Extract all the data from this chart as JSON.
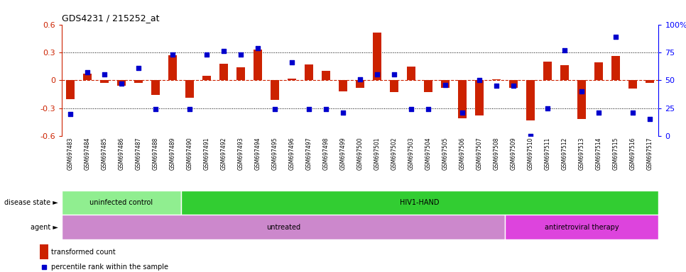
{
  "title": "GDS4231 / 215252_at",
  "samples": [
    "GSM697483",
    "GSM697484",
    "GSM697485",
    "GSM697486",
    "GSM697487",
    "GSM697488",
    "GSM697489",
    "GSM697490",
    "GSM697491",
    "GSM697492",
    "GSM697493",
    "GSM697494",
    "GSM697495",
    "GSM697496",
    "GSM697497",
    "GSM697498",
    "GSM697499",
    "GSM697500",
    "GSM697501",
    "GSM697502",
    "GSM697503",
    "GSM697504",
    "GSM697505",
    "GSM697506",
    "GSM697507",
    "GSM697508",
    "GSM697509",
    "GSM697510",
    "GSM697511",
    "GSM697512",
    "GSM697513",
    "GSM697514",
    "GSM697515",
    "GSM697516",
    "GSM697517"
  ],
  "bar_values": [
    -0.2,
    0.07,
    -0.03,
    -0.06,
    -0.03,
    -0.16,
    0.27,
    -0.19,
    0.05,
    0.18,
    0.14,
    0.33,
    -0.21,
    0.02,
    0.17,
    0.1,
    -0.12,
    -0.08,
    0.51,
    -0.13,
    0.15,
    -0.13,
    -0.08,
    -0.41,
    -0.38,
    0.01,
    -0.08,
    -0.43,
    0.2,
    0.16,
    -0.42,
    0.19,
    0.26,
    -0.09,
    -0.03
  ],
  "dot_percentiles": [
    20,
    57,
    55,
    47,
    61,
    24,
    73,
    24,
    73,
    76,
    73,
    79,
    24,
    66,
    24,
    24,
    21,
    51,
    55,
    55,
    24,
    24,
    46,
    21,
    50,
    45,
    45,
    0,
    25,
    77,
    40,
    21,
    89,
    21,
    15
  ],
  "bar_color": "#CC2200",
  "dot_color": "#0000CC",
  "zero_line_color": "#CC2200",
  "grid_color": "#000000",
  "ylim_left": [
    -0.6,
    0.6
  ],
  "ylim_right": [
    0,
    100
  ],
  "yticks_left": [
    -0.6,
    -0.3,
    0.0,
    0.3,
    0.6
  ],
  "yticks_right": [
    0,
    25,
    50,
    75,
    100
  ],
  "ytick_labels_left": [
    "-0.6",
    "-0.3",
    "0",
    "0.3",
    "0.6"
  ],
  "ytick_labels_right": [
    "0",
    "25",
    "50",
    "75",
    "100%"
  ],
  "hlines": [
    0.3,
    -0.3
  ],
  "disease_state_groups": [
    {
      "label": "uninfected control",
      "start": 0,
      "end": 7,
      "color": "#90EE90"
    },
    {
      "label": "HIV1-HAND",
      "start": 7,
      "end": 35,
      "color": "#32CD32"
    }
  ],
  "agent_groups": [
    {
      "label": "untreated",
      "start": 0,
      "end": 26,
      "color": "#CC88CC"
    },
    {
      "label": "antiretroviral therapy",
      "start": 26,
      "end": 35,
      "color": "#DD44DD"
    }
  ],
  "legend_items": [
    {
      "label": "transformed count",
      "color": "#CC2200"
    },
    {
      "label": "percentile rank within the sample",
      "color": "#0000CC"
    }
  ]
}
